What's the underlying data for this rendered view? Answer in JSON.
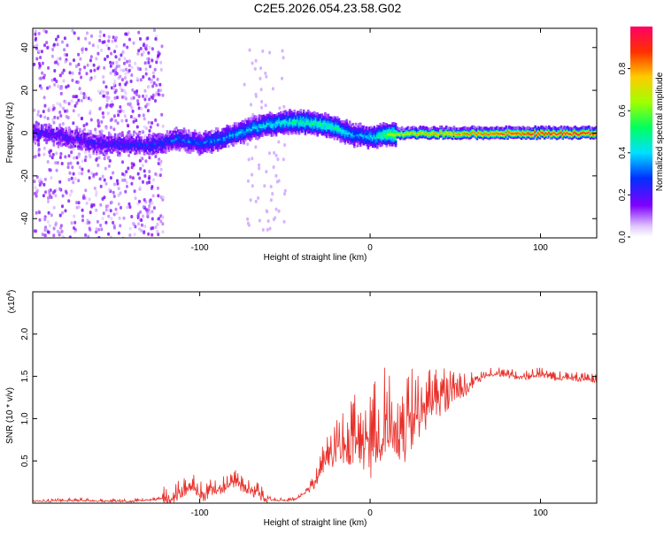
{
  "title": "C2E5.2026.054.23.58.G02",
  "chart_data": [
    {
      "id": "spectrogram",
      "type": "heatmap",
      "xlabel": "Height of straight line (km)",
      "ylabel": "Frequency (Hz)",
      "xlim": [
        -198,
        133
      ],
      "ylim": [
        -49,
        49
      ],
      "xticks": [
        -100,
        0,
        100
      ],
      "yticks": [
        -40,
        -20,
        0,
        20,
        40
      ],
      "xtick_labels": [
        "-100",
        "0",
        "100"
      ],
      "ytick_labels": [
        "-40",
        "-20",
        "0",
        "20",
        "40"
      ],
      "ridge": {
        "x": [
          -190,
          -160,
          -130,
          -115,
          -100,
          -85,
          -70,
          -60,
          -50,
          -40,
          -30,
          -20,
          -10,
          0,
          10,
          20,
          40,
          60,
          80,
          100,
          133
        ],
        "freq": [
          0,
          -5,
          -6,
          -3,
          -5,
          -2,
          2,
          4,
          5,
          5,
          4,
          2,
          -1,
          -2,
          -1,
          0,
          0,
          0,
          0,
          0,
          0
        ],
        "amplitude": [
          0.2,
          0.22,
          0.25,
          0.3,
          0.3,
          0.35,
          0.4,
          0.42,
          0.45,
          0.48,
          0.5,
          0.5,
          0.35,
          0.4,
          0.6,
          0.75,
          0.8,
          0.85,
          0.92,
          0.95,
          0.95
        ]
      },
      "noise_region_x": [
        -198,
        -122
      ],
      "colorbar": {
        "label": "Normalized spectral amplitude",
        "range": [
          0,
          1
        ],
        "ticks": [
          0.0,
          0.2,
          0.4,
          0.6,
          0.8
        ],
        "tick_labels": [
          "0.0",
          "0.2",
          "0.4",
          "0.6",
          "0.8"
        ]
      }
    },
    {
      "id": "snr",
      "type": "line",
      "xlabel": "Height of straight line (km)",
      "ylabel": "SNR (10 * v/v)",
      "multiplier_label": "(x10",
      "multiplier_exp": "4",
      "multiplier_close": ")",
      "xlim": [
        -198,
        133
      ],
      "ylim": [
        0,
        2.5
      ],
      "xticks": [
        -100,
        0,
        100
      ],
      "yticks": [
        0.5,
        1.0,
        1.5,
        2.0
      ],
      "xtick_labels": [
        "-100",
        "0",
        "100"
      ],
      "ytick_labels": [
        "0.5",
        "1.0",
        "1.5",
        "2.0"
      ],
      "series": [
        {
          "name": "SNR",
          "color": "#e8302a",
          "x": [
            -198,
            -170,
            -140,
            -125,
            -115,
            -108,
            -103,
            -98,
            -92,
            -86,
            -80,
            -75,
            -70,
            -65,
            -58,
            -50,
            -45,
            -40,
            -35,
            -32,
            -30,
            -28,
            -25,
            -22,
            -20,
            -15,
            -10,
            -5,
            0,
            5,
            10,
            15,
            20,
            25,
            30,
            35,
            40,
            45,
            50,
            55,
            60,
            65,
            70,
            80,
            90,
            100,
            110,
            120,
            133
          ],
          "values": [
            0.03,
            0.04,
            0.03,
            0.05,
            0.12,
            0.2,
            0.25,
            0.12,
            0.22,
            0.2,
            0.28,
            0.25,
            0.2,
            0.15,
            0.05,
            0.04,
            0.05,
            0.1,
            0.2,
            0.3,
            0.4,
            0.5,
            0.6,
            0.65,
            0.7,
            0.75,
            0.85,
            0.9,
            0.8,
            1.0,
            1.1,
            1.05,
            1.0,
            1.15,
            1.25,
            1.2,
            1.3,
            1.35,
            1.45,
            1.4,
            1.45,
            1.5,
            1.55,
            1.55,
            1.5,
            1.55,
            1.5,
            1.5,
            1.47
          ]
        }
      ]
    }
  ]
}
